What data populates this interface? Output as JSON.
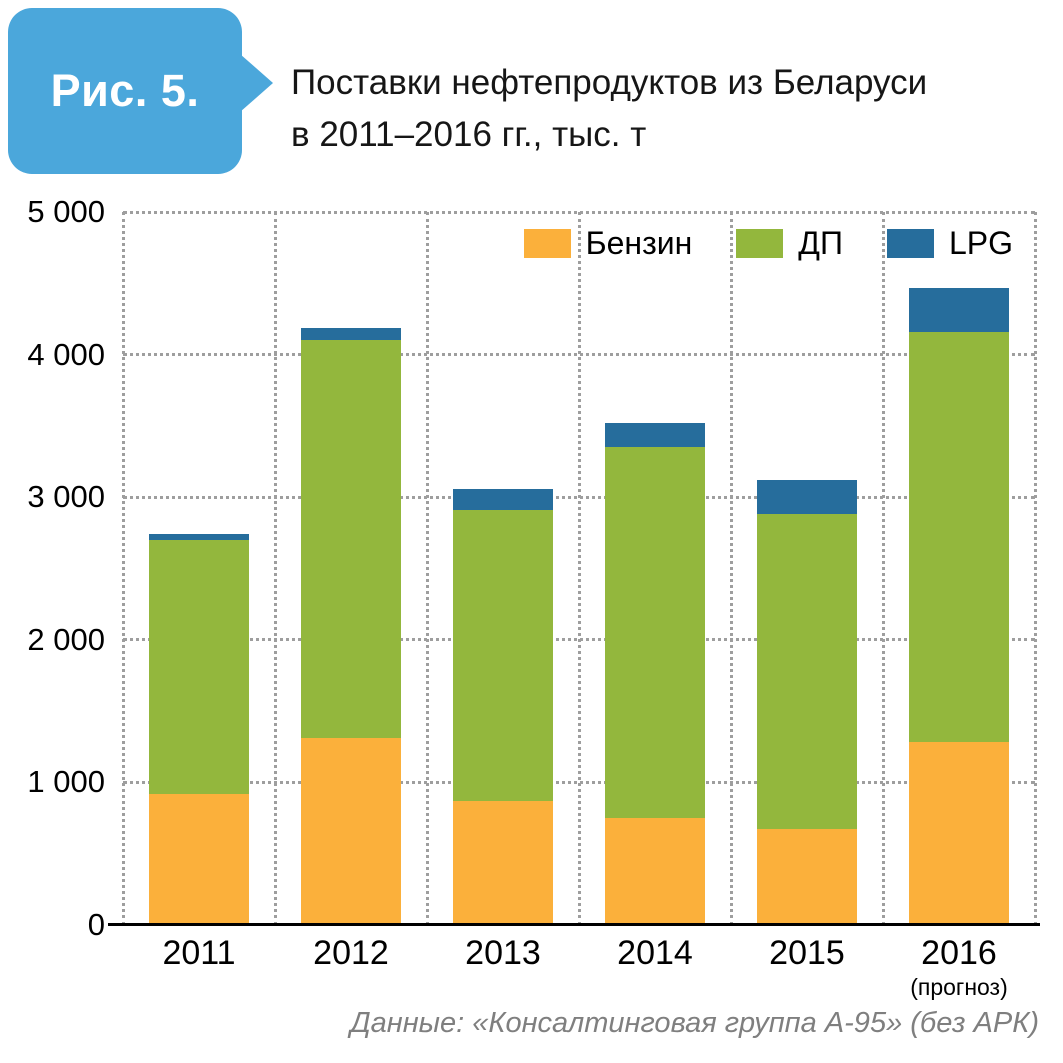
{
  "figure": {
    "badge": "Рис. 5.",
    "title_line1": "Поставки нефтепродуктов из Беларуси",
    "title_line2": "в 2011–2016 гг., тыс. т",
    "source": "Данные: «Консалтинговая группа А-95» (без АРК)"
  },
  "colors": {
    "badge_bg": "#4BA7DB",
    "benzin": "#FBB03B",
    "dp": "#93B73D",
    "lpg": "#266D9C",
    "grid": "#9E9E9E",
    "axis": "#000000",
    "source_text": "#7F7F7F"
  },
  "chart_data": {
    "type": "bar",
    "stacked": true,
    "title": "Поставки нефтепродуктов из Беларуси в 2011–2016 гг., тыс. т",
    "categories": [
      "2011",
      "2012",
      "2013",
      "2014",
      "2015",
      "2016"
    ],
    "category_sublabels": [
      "",
      "",
      "",
      "",
      "",
      "(прогноз)"
    ],
    "series": [
      {
        "name": "Бензин",
        "color_key": "benzin",
        "values": [
          920,
          1310,
          870,
          750,
          670,
          1280
        ]
      },
      {
        "name": "ДП",
        "color_key": "dp",
        "values": [
          1780,
          2790,
          2040,
          2600,
          2210,
          2880
        ]
      },
      {
        "name": "LPG",
        "color_key": "lpg",
        "values": [
          40,
          90,
          150,
          170,
          240,
          310
        ]
      }
    ],
    "totals": [
      2740,
      4190,
      3060,
      3520,
      3120,
      4470
    ],
    "ylim": [
      0,
      5000
    ],
    "ytick_labels": [
      "0",
      "1 000",
      "2 000",
      "3 000",
      "4 000",
      "5 000"
    ],
    "grid": "dotted",
    "legend_position": "top-right"
  }
}
